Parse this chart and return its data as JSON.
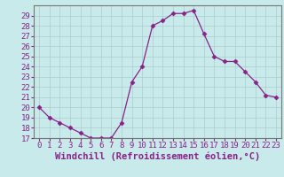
{
  "x": [
    0,
    1,
    2,
    3,
    4,
    5,
    6,
    7,
    8,
    9,
    10,
    11,
    12,
    13,
    14,
    15,
    16,
    17,
    18,
    19,
    20,
    21,
    22,
    23
  ],
  "y": [
    20,
    19,
    18.5,
    18,
    17.5,
    17,
    17,
    17,
    18.5,
    22.5,
    24,
    28,
    28.5,
    29.2,
    29.2,
    29.5,
    27.2,
    25,
    24.5,
    24.5,
    23.5,
    22.5,
    21.2,
    21
  ],
  "line_color": "#882288",
  "marker": "D",
  "marker_size": 2.5,
  "bg_color": "#c8eaea",
  "grid_color": "#aacccc",
  "xlabel": "Windchill (Refroidissement éolien,°C)",
  "ylim": [
    17,
    30
  ],
  "xlim": [
    -0.5,
    23.5
  ],
  "yticks": [
    17,
    18,
    19,
    20,
    21,
    22,
    23,
    24,
    25,
    26,
    27,
    28,
    29
  ],
  "xticks": [
    0,
    1,
    2,
    3,
    4,
    5,
    6,
    7,
    8,
    9,
    10,
    11,
    12,
    13,
    14,
    15,
    16,
    17,
    18,
    19,
    20,
    21,
    22,
    23
  ],
  "font_color": "#882288",
  "tick_font_size": 6.5,
  "label_font_size": 7.5
}
